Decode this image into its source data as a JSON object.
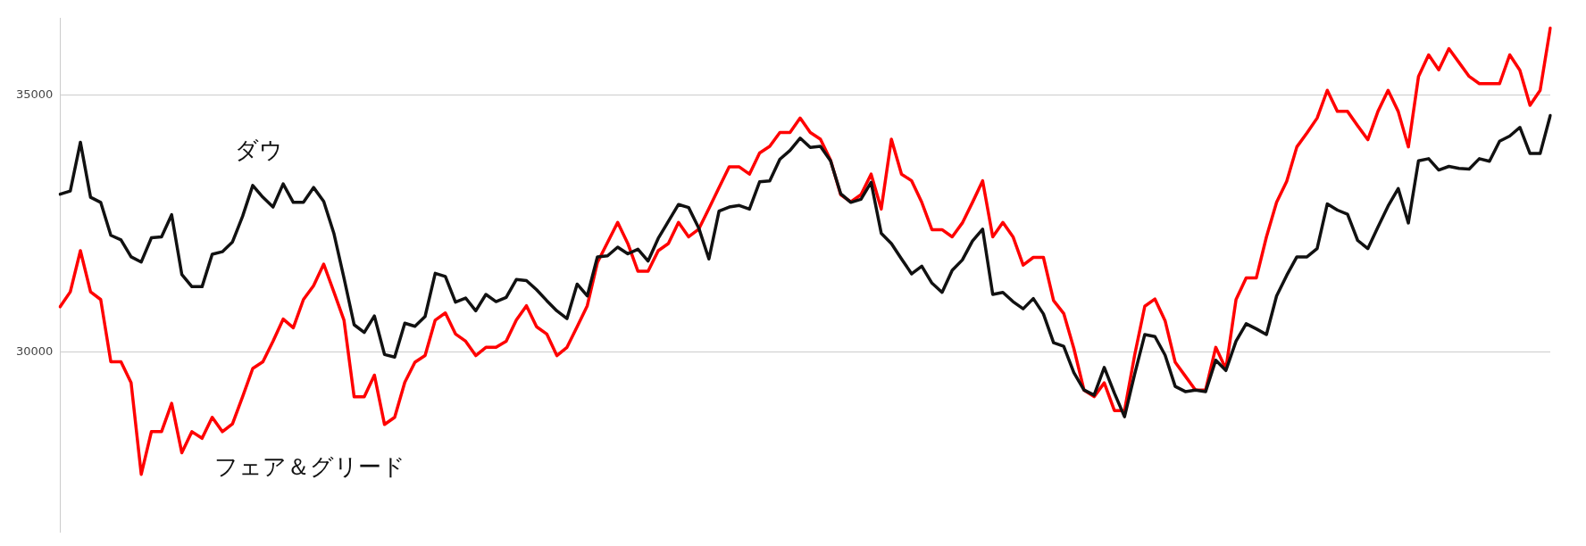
{
  "chart_data": {
    "type": "line",
    "categories": [
      null,
      null,
      null,
      null,
      null,
      null,
      null,
      null,
      null,
      null,
      null,
      null,
      null,
      null,
      null,
      null,
      null,
      null,
      null,
      null,
      null,
      null,
      null,
      null,
      null,
      null,
      null,
      null,
      null,
      null,
      null,
      null,
      null,
      null,
      null,
      null,
      null,
      null,
      null,
      null,
      null,
      null,
      null,
      null,
      null,
      null,
      null,
      null,
      null,
      null,
      null,
      null,
      null,
      null,
      null,
      null,
      null,
      null,
      null,
      null,
      null,
      null,
      null,
      null,
      null,
      null,
      null,
      null,
      null,
      null,
      null,
      null,
      null,
      null,
      null,
      null,
      null,
      null,
      null,
      null,
      null,
      null,
      null,
      null,
      null,
      null,
      null,
      null,
      null,
      null,
      null,
      null,
      null,
      null,
      null,
      null,
      null,
      null,
      null,
      null,
      null,
      null,
      null,
      null,
      null,
      null,
      null,
      null,
      null,
      null,
      null,
      null,
      null,
      null,
      null,
      null,
      null,
      null,
      null,
      null,
      null,
      null,
      null,
      null,
      null,
      null,
      null,
      null,
      null,
      null,
      null,
      null,
      null,
      null,
      null,
      null,
      null,
      null,
      null,
      null,
      null,
      null,
      null,
      null,
      null,
      null,
      null,
      null
    ],
    "series": [
      {
        "name": "ダウ",
        "color": "#111111",
        "values": [
          33070,
          33130,
          34080,
          33010,
          32910,
          32270,
          32180,
          31850,
          31750,
          32220,
          32240,
          32670,
          31510,
          31270,
          31270,
          31900,
          31950,
          32140,
          32640,
          33240,
          33010,
          32820,
          33270,
          32910,
          32910,
          33200,
          32930,
          32310,
          31440,
          30530,
          30380,
          30700,
          29950,
          29900,
          30560,
          30500,
          30690,
          31530,
          31470,
          30970,
          31050,
          30800,
          31120,
          30980,
          31060,
          31410,
          31390,
          31210,
          31000,
          30800,
          30650,
          31320,
          31090,
          31850,
          31870,
          32040,
          31910,
          32000,
          31770,
          32210,
          32540,
          32870,
          32810,
          32410,
          31810,
          32740,
          32820,
          32850,
          32780,
          33310,
          33330,
          33750,
          33920,
          34160,
          33980,
          34000,
          33720,
          33080,
          32910,
          32970,
          33300,
          32310,
          32110,
          31810,
          31520,
          31670,
          31340,
          31160,
          31590,
          31790,
          32160,
          32390,
          31120,
          31160,
          30980,
          30840,
          31040,
          30740,
          30180,
          30110,
          29600,
          29260,
          29160,
          29700,
          29200,
          28740,
          29570,
          30340,
          30300,
          29940,
          29330,
          29230,
          29260,
          29230,
          29840,
          29640,
          30210,
          30550,
          30450,
          30340,
          31090,
          31490,
          31850,
          31850,
          32010,
          32880,
          32760,
          32680,
          32170,
          32010,
          32430,
          32840,
          33180,
          32510,
          33720,
          33760,
          33540,
          33610,
          33570,
          33560,
          33760,
          33710,
          34100,
          34200,
          34370,
          33860,
          33860,
          34600
        ]
      },
      {
        "name": "フェア＆グリード",
        "color": "#ff0000",
        "values": [
          30880,
          31170,
          31970,
          31170,
          31020,
          29810,
          29810,
          29400,
          27620,
          28450,
          28450,
          29000,
          28040,
          28450,
          28320,
          28730,
          28450,
          28600,
          29130,
          29680,
          29810,
          30210,
          30640,
          30470,
          31020,
          31290,
          31710,
          31170,
          30620,
          29130,
          29130,
          29550,
          28590,
          28730,
          29410,
          29800,
          29930,
          30620,
          30760,
          30350,
          30210,
          29930,
          30090,
          30090,
          30210,
          30620,
          30900,
          30490,
          30350,
          29930,
          30090,
          30490,
          30900,
          31740,
          32130,
          32520,
          32110,
          31570,
          31570,
          31970,
          32110,
          32520,
          32240,
          32390,
          32790,
          33200,
          33600,
          33600,
          33460,
          33870,
          34000,
          34270,
          34270,
          34550,
          34270,
          34140,
          33730,
          33060,
          32920,
          33060,
          33460,
          32780,
          34140,
          33460,
          33330,
          32910,
          32380,
          32380,
          32240,
          32510,
          32910,
          33330,
          32240,
          32520,
          32240,
          31690,
          31840,
          31840,
          31000,
          30750,
          30070,
          29260,
          29130,
          29400,
          28860,
          28860,
          29940,
          30890,
          31030,
          30610,
          29800,
          29530,
          29260,
          29260,
          30090,
          29670,
          31020,
          31440,
          31440,
          32240,
          32910,
          33320,
          33990,
          34260,
          34550,
          35090,
          34680,
          34680,
          34400,
          34130,
          34680,
          35090,
          34680,
          33990,
          35360,
          35780,
          35490,
          35900,
          35630,
          35360,
          35220,
          35220,
          35220,
          35780,
          35480,
          34800,
          35090,
          36300
        ]
      }
    ],
    "ylim": [
      26500,
      36500
    ],
    "yticks": [
      30000,
      35000
    ],
    "grid": "y",
    "tick_labels": "y",
    "marker": "none",
    "line_style": "solid"
  }
}
